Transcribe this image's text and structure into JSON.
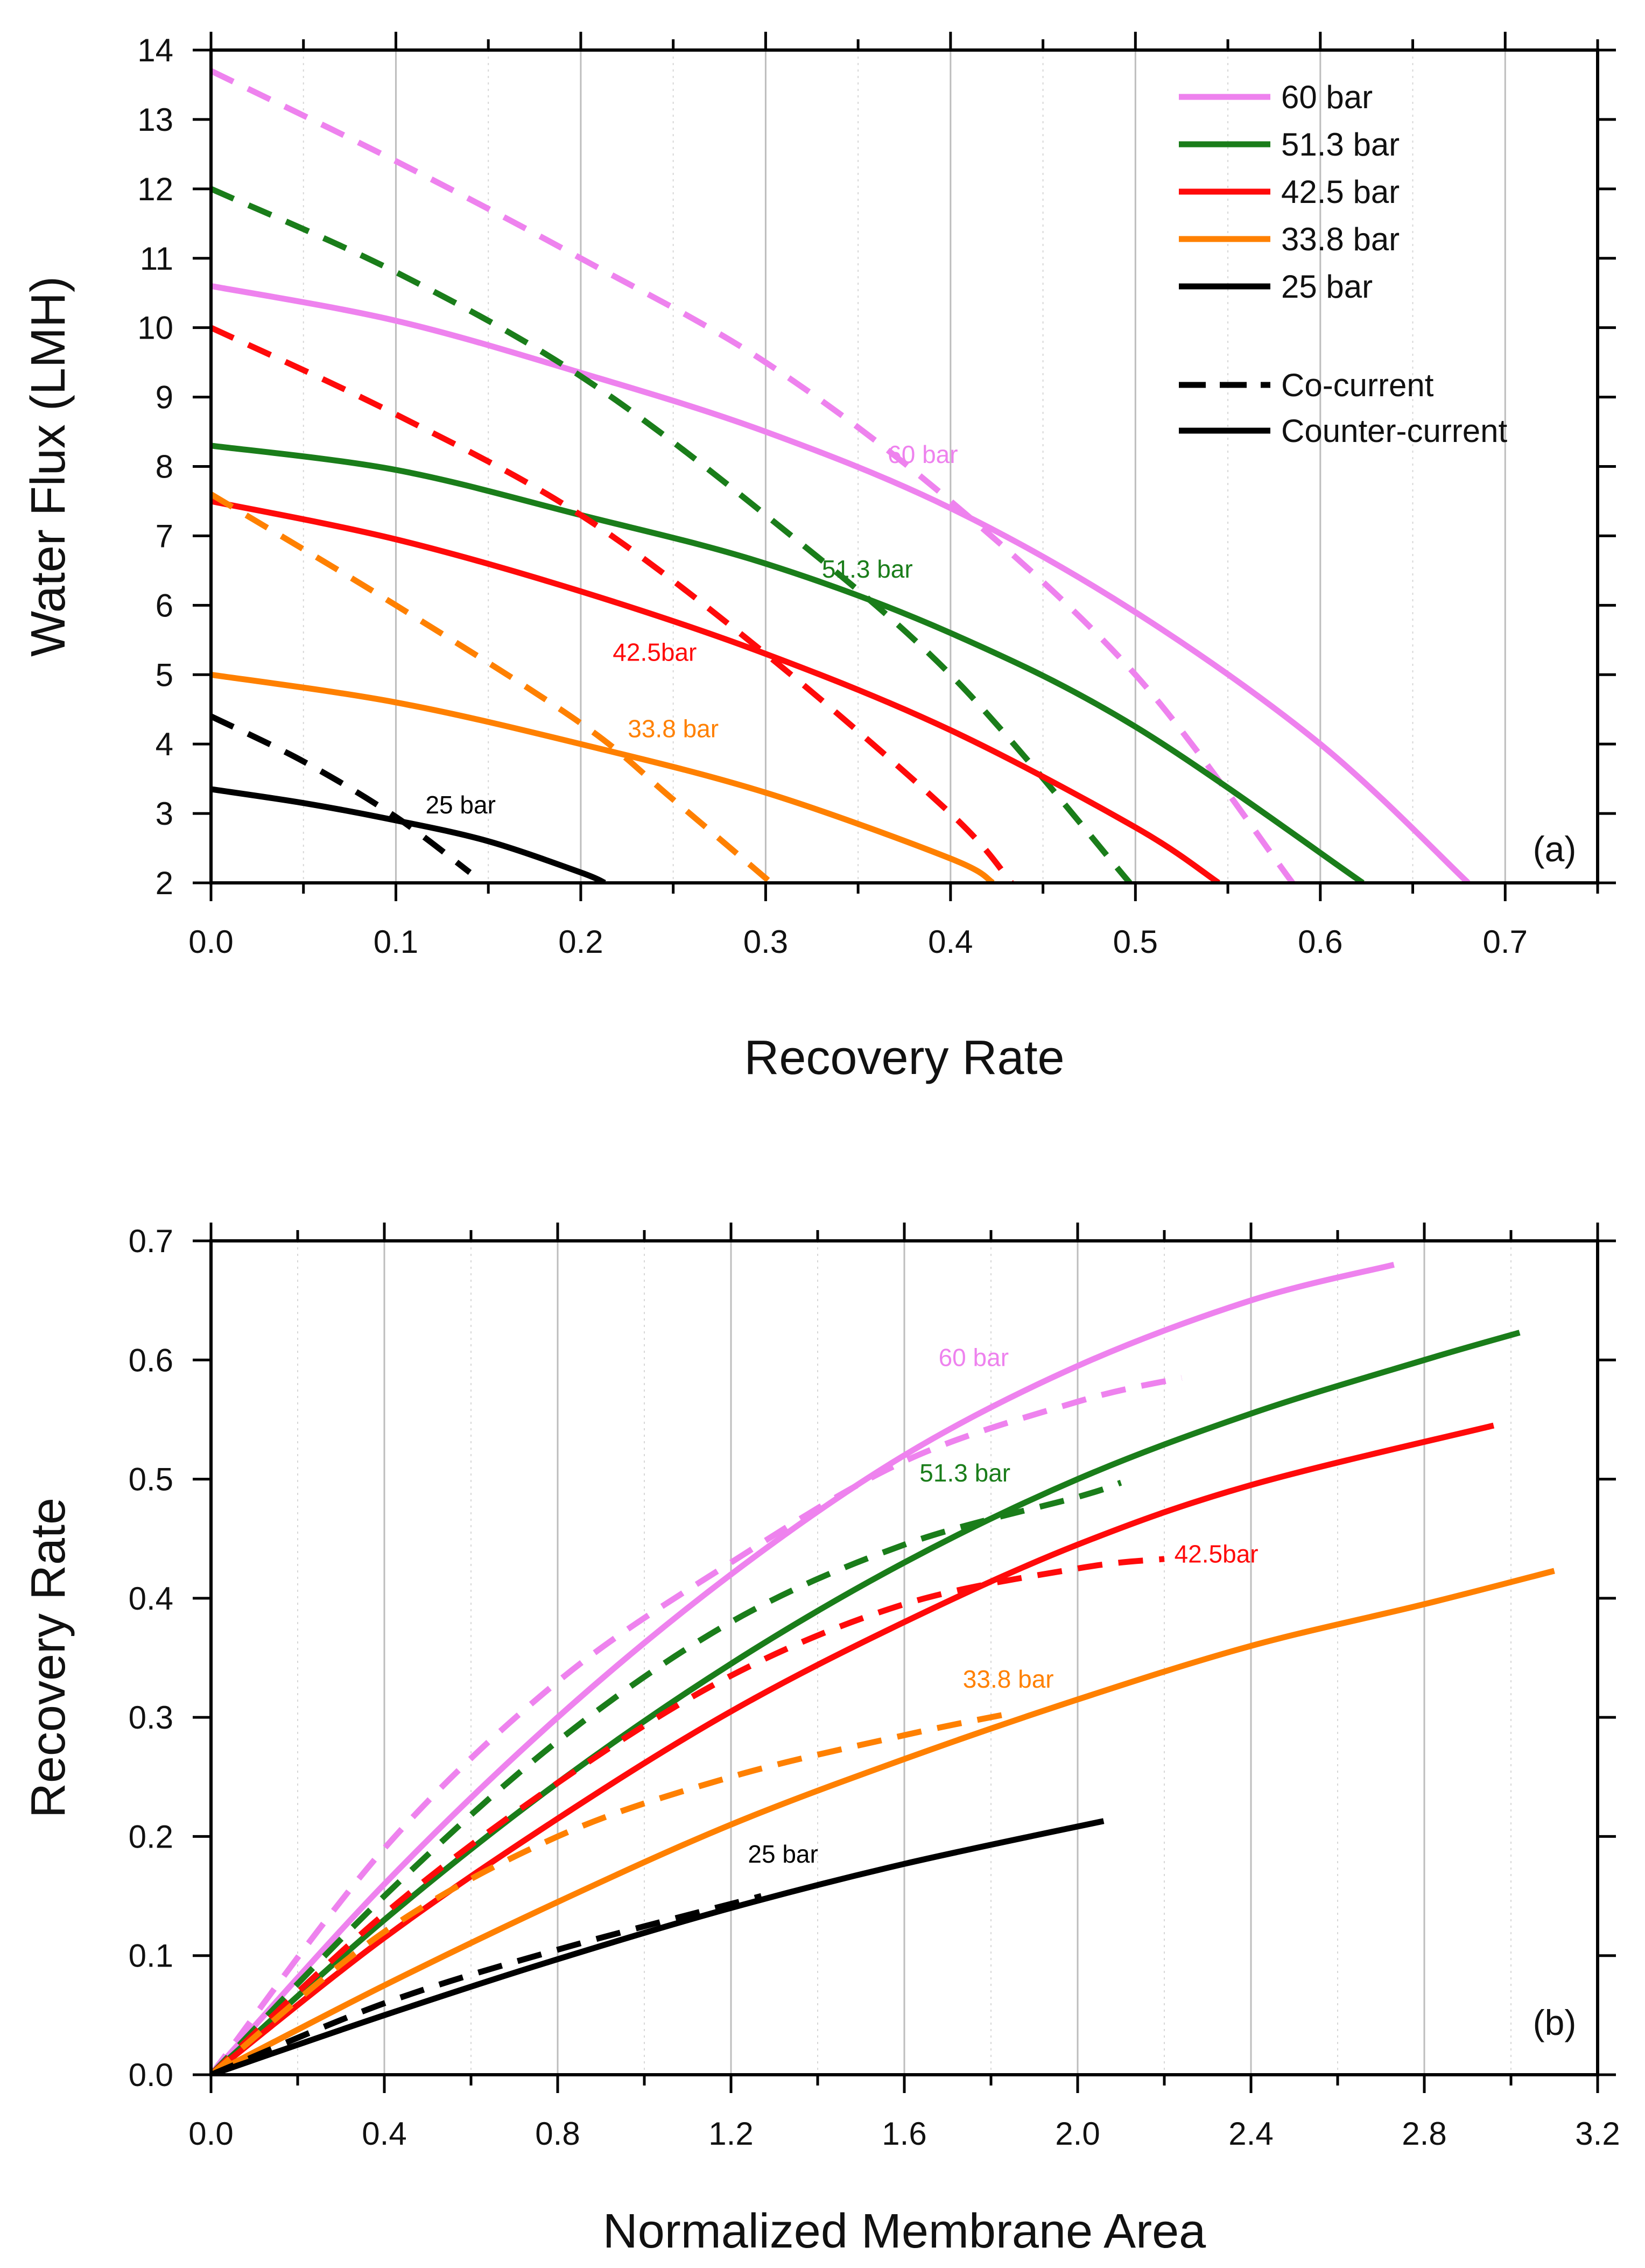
{
  "figure": {
    "title": ""
  },
  "chart_data": [
    {
      "type": "line",
      "panel": "(a)",
      "title": "",
      "xlabel": "Recovery Rate",
      "ylabel": "Water Flux  (LMH)",
      "xlim": [
        0.0,
        0.75
      ],
      "ylim": [
        2,
        14
      ],
      "xticks": [
        0.0,
        0.1,
        0.2,
        0.3,
        0.4,
        0.5,
        0.6,
        0.7
      ],
      "xtick_labels": [
        "0.0",
        "0.1",
        "0.2",
        "0.3",
        "0.4",
        "0.5",
        "0.6",
        "0.7"
      ],
      "yticks": [
        2,
        3,
        4,
        5,
        6,
        7,
        8,
        9,
        10,
        11,
        12,
        13,
        14
      ],
      "ytick_labels": [
        "2",
        "3",
        "4",
        "5",
        "6",
        "7",
        "8",
        "9",
        "10",
        "11",
        "12",
        "13",
        "14"
      ],
      "grid": "vertical",
      "legend_position": "top-right",
      "legend": [
        {
          "label": "60 bar",
          "color": "#ee82ee",
          "style": "solid"
        },
        {
          "label": "51.3 bar",
          "color": "#1a7d1a",
          "style": "solid"
        },
        {
          "label": "42.5 bar",
          "color": "#ff0a0a",
          "style": "solid"
        },
        {
          "label": "33.8 bar",
          "color": "#ff8000",
          "style": "solid"
        },
        {
          "label": "25 bar",
          "color": "#000000",
          "style": "solid"
        },
        {
          "label": "Co-current",
          "color": "#000000",
          "style": "dashed"
        },
        {
          "label": "Counter-current",
          "color": "#000000",
          "style": "solid"
        }
      ],
      "curve_labels": [
        {
          "text": "60 bar",
          "x": 0.385,
          "y": 8.05,
          "color": "#ee82ee"
        },
        {
          "text": "51.3 bar",
          "x": 0.355,
          "y": 6.4,
          "color": "#1a7d1a"
        },
        {
          "text": "42.5bar",
          "x": 0.24,
          "y": 5.2,
          "color": "#ff0a0a"
        },
        {
          "text": "33.8 bar",
          "x": 0.25,
          "y": 4.1,
          "color": "#ff8000"
        },
        {
          "text": "25 bar",
          "x": 0.135,
          "y": 3.0,
          "color": "#000000"
        }
      ],
      "series": [
        {
          "name": "60 bar counter-current",
          "color": "#ee82ee",
          "style": "solid",
          "x": [
            0.0,
            0.1,
            0.2,
            0.3,
            0.4,
            0.5,
            0.6,
            0.68
          ],
          "y": [
            10.6,
            10.1,
            9.35,
            8.5,
            7.4,
            5.9,
            4.0,
            2.0
          ]
        },
        {
          "name": "60 bar co-current",
          "color": "#ee82ee",
          "style": "dashed",
          "x": [
            0.0,
            0.1,
            0.2,
            0.3,
            0.4,
            0.5,
            0.585
          ],
          "y": [
            13.7,
            12.4,
            11.0,
            9.5,
            7.5,
            5.0,
            2.0
          ]
        },
        {
          "name": "51.3 bar counter-current",
          "color": "#1a7d1a",
          "style": "solid",
          "x": [
            0.0,
            0.1,
            0.2,
            0.3,
            0.4,
            0.5,
            0.623
          ],
          "y": [
            8.3,
            7.95,
            7.3,
            6.6,
            5.6,
            4.25,
            2.0
          ]
        },
        {
          "name": "51.3 bar co-current",
          "color": "#1a7d1a",
          "style": "dashed",
          "x": [
            0.0,
            0.1,
            0.2,
            0.3,
            0.4,
            0.497
          ],
          "y": [
            12.0,
            10.8,
            9.3,
            7.3,
            5.0,
            2.0
          ]
        },
        {
          "name": "42.5 bar counter-current",
          "color": "#ff0a0a",
          "style": "solid",
          "x": [
            0.0,
            0.1,
            0.2,
            0.3,
            0.4,
            0.5,
            0.545
          ],
          "y": [
            7.5,
            6.95,
            6.2,
            5.3,
            4.2,
            2.8,
            2.0
          ]
        },
        {
          "name": "42.5 bar co-current",
          "color": "#ff0a0a",
          "style": "dashed",
          "x": [
            0.0,
            0.1,
            0.2,
            0.3,
            0.4,
            0.433
          ],
          "y": [
            10.0,
            8.75,
            7.3,
            5.3,
            3.0,
            2.0
          ]
        },
        {
          "name": "33.8 bar counter-current",
          "color": "#ff8000",
          "style": "solid",
          "x": [
            0.0,
            0.1,
            0.2,
            0.3,
            0.4,
            0.423
          ],
          "y": [
            5.0,
            4.6,
            4.0,
            3.3,
            2.35,
            2.0
          ]
        },
        {
          "name": "33.8 bar co-current",
          "color": "#ff8000",
          "style": "dashed",
          "x": [
            0.0,
            0.1,
            0.2,
            0.25,
            0.303
          ],
          "y": [
            7.6,
            6.0,
            4.3,
            3.2,
            2.0
          ]
        },
        {
          "name": "25 bar counter-current",
          "color": "#000000",
          "style": "solid",
          "x": [
            0.0,
            0.05,
            0.1,
            0.15,
            0.2,
            0.213
          ],
          "y": [
            3.35,
            3.15,
            2.9,
            2.6,
            2.15,
            2.0
          ]
        },
        {
          "name": "25 bar co-current",
          "color": "#000000",
          "style": "dashed",
          "x": [
            0.0,
            0.05,
            0.1,
            0.14
          ],
          "y": [
            4.4,
            3.75,
            2.95,
            2.15
          ]
        }
      ],
      "annotation": "(a)"
    },
    {
      "type": "line",
      "panel": "(b)",
      "title": "",
      "xlabel": "Normalized Membrane Area",
      "ylabel": "Recovery Rate",
      "xlim": [
        0.0,
        3.2
      ],
      "ylim": [
        0.0,
        0.7
      ],
      "xticks": [
        0.0,
        0.4,
        0.8,
        1.2,
        1.6,
        2.0,
        2.4,
        2.8,
        3.2
      ],
      "xtick_labels": [
        "0.0",
        "0.4",
        "0.8",
        "1.2",
        "1.6",
        "2.0",
        "2.4",
        "2.8",
        "3.2"
      ],
      "yticks": [
        0.0,
        0.1,
        0.2,
        0.3,
        0.4,
        0.5,
        0.6,
        0.7
      ],
      "ytick_labels": [
        "0.0",
        "0.1",
        "0.2",
        "0.3",
        "0.4",
        "0.5",
        "0.6",
        "0.7"
      ],
      "grid": "vertical",
      "legend_position": "none",
      "curve_labels": [
        {
          "text": "60 bar",
          "x": 1.76,
          "y": 0.595,
          "color": "#ee82ee"
        },
        {
          "text": "51.3 bar",
          "x": 1.74,
          "y": 0.498,
          "color": "#1a7d1a"
        },
        {
          "text": "42.5bar",
          "x": 2.32,
          "y": 0.43,
          "color": "#ff0a0a"
        },
        {
          "text": "33.8 bar",
          "x": 1.84,
          "y": 0.325,
          "color": "#ff8000"
        },
        {
          "text": "25 bar",
          "x": 1.32,
          "y": 0.178,
          "color": "#000000"
        }
      ],
      "series": [
        {
          "name": "60 bar counter-current",
          "color": "#ee82ee",
          "style": "solid",
          "x": [
            0.0,
            0.4,
            0.8,
            1.2,
            1.6,
            2.0,
            2.4,
            2.73
          ],
          "y": [
            0.0,
            0.16,
            0.3,
            0.42,
            0.52,
            0.595,
            0.65,
            0.68
          ]
        },
        {
          "name": "60 bar co-current",
          "color": "#ee82ee",
          "style": "dashed",
          "x": [
            0.0,
            0.4,
            0.8,
            1.2,
            1.6,
            2.0,
            2.24
          ],
          "y": [
            0.0,
            0.19,
            0.33,
            0.43,
            0.515,
            0.565,
            0.585
          ]
        },
        {
          "name": "51.3 bar counter-current",
          "color": "#1a7d1a",
          "style": "solid",
          "x": [
            0.0,
            0.4,
            0.8,
            1.2,
            1.6,
            2.0,
            2.4,
            2.8,
            3.02
          ],
          "y": [
            0.0,
            0.13,
            0.245,
            0.345,
            0.43,
            0.5,
            0.555,
            0.6,
            0.623
          ]
        },
        {
          "name": "51.3 bar co-current",
          "color": "#1a7d1a",
          "style": "dashed",
          "x": [
            0.0,
            0.4,
            0.8,
            1.2,
            1.6,
            2.0,
            2.1
          ],
          "y": [
            0.0,
            0.15,
            0.28,
            0.38,
            0.445,
            0.485,
            0.497
          ]
        },
        {
          "name": "42.5 bar counter-current",
          "color": "#ff0a0a",
          "style": "solid",
          "x": [
            0.0,
            0.4,
            0.8,
            1.2,
            1.6,
            2.0,
            2.4,
            2.96
          ],
          "y": [
            0.0,
            0.115,
            0.215,
            0.305,
            0.38,
            0.445,
            0.495,
            0.545
          ]
        },
        {
          "name": "42.5 bar co-current",
          "color": "#ff0a0a",
          "style": "dashed",
          "x": [
            0.0,
            0.4,
            0.8,
            1.2,
            1.6,
            2.0,
            2.2
          ],
          "y": [
            0.0,
            0.135,
            0.245,
            0.335,
            0.395,
            0.425,
            0.433
          ]
        },
        {
          "name": "33.8 bar counter-current",
          "color": "#ff8000",
          "style": "solid",
          "x": [
            0.0,
            0.4,
            0.8,
            1.2,
            1.6,
            2.0,
            2.4,
            2.8,
            3.1
          ],
          "y": [
            0.0,
            0.075,
            0.145,
            0.21,
            0.265,
            0.315,
            0.36,
            0.395,
            0.423
          ]
        },
        {
          "name": "33.8 bar co-current",
          "color": "#ff8000",
          "style": "dashed",
          "x": [
            0.0,
            0.4,
            0.8,
            1.2,
            1.6,
            1.84
          ],
          "y": [
            0.0,
            0.12,
            0.2,
            0.25,
            0.285,
            0.303
          ]
        },
        {
          "name": "25 bar counter-current",
          "color": "#000000",
          "style": "solid",
          "x": [
            0.0,
            0.4,
            0.8,
            1.2,
            1.6,
            2.06
          ],
          "y": [
            0.0,
            0.05,
            0.097,
            0.14,
            0.177,
            0.213
          ]
        },
        {
          "name": "25 bar co-current",
          "color": "#000000",
          "style": "dashed",
          "x": [
            0.0,
            0.4,
            0.8,
            1.27
          ],
          "y": [
            0.0,
            0.06,
            0.105,
            0.15
          ]
        }
      ],
      "annotation": "(b)"
    }
  ]
}
